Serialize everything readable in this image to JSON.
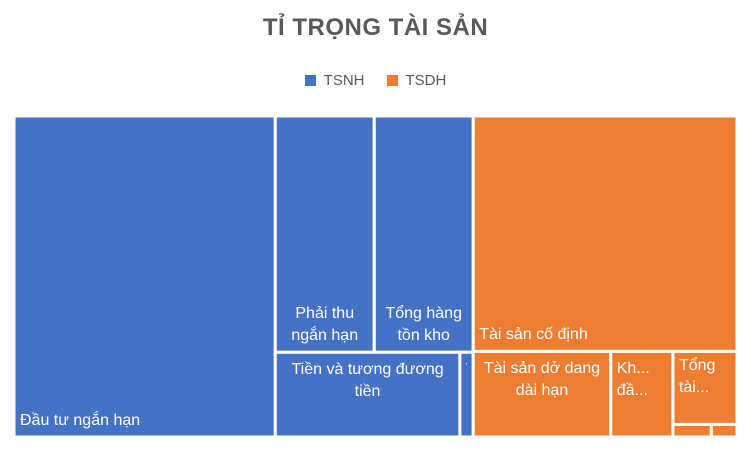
{
  "chart_data": {
    "type": "treemap",
    "title": "TỈ TRỌNG TÀI SẢN",
    "legend": [
      {
        "name": "TSNH",
        "color": "#4472C4"
      },
      {
        "name": "TSDH",
        "color": "#ED7D31"
      }
    ],
    "legend_position": "top",
    "groups": [
      {
        "name": "TSNH",
        "color": "#4472C4",
        "items": [
          {
            "label": "Đầu tư ngắn hạn",
            "value": 52.0
          },
          {
            "label": "Phải thu ngắn hạn",
            "value": 14.5
          },
          {
            "label": "Tổng hàng tồn kho",
            "value": 14.5
          },
          {
            "label": "Tiền và tương đương tiền",
            "value": 9.7
          },
          {
            "label": "T... s...",
            "value": 0.7
          }
        ]
      },
      {
        "name": "TSDH",
        "color": "#ED7D31",
        "items": [
          {
            "label": "Tài sản cố định",
            "value": 38.5
          },
          {
            "label": "Tài sản dở dang dài hạn",
            "value": 7.3
          },
          {
            "label": "Kh... đầ...",
            "value": 3.3
          },
          {
            "label": "Tổng tài...",
            "value": 2.9
          },
          {
            "label": "",
            "value": 0.3
          },
          {
            "label": "",
            "value": 0.2
          }
        ]
      }
    ]
  }
}
